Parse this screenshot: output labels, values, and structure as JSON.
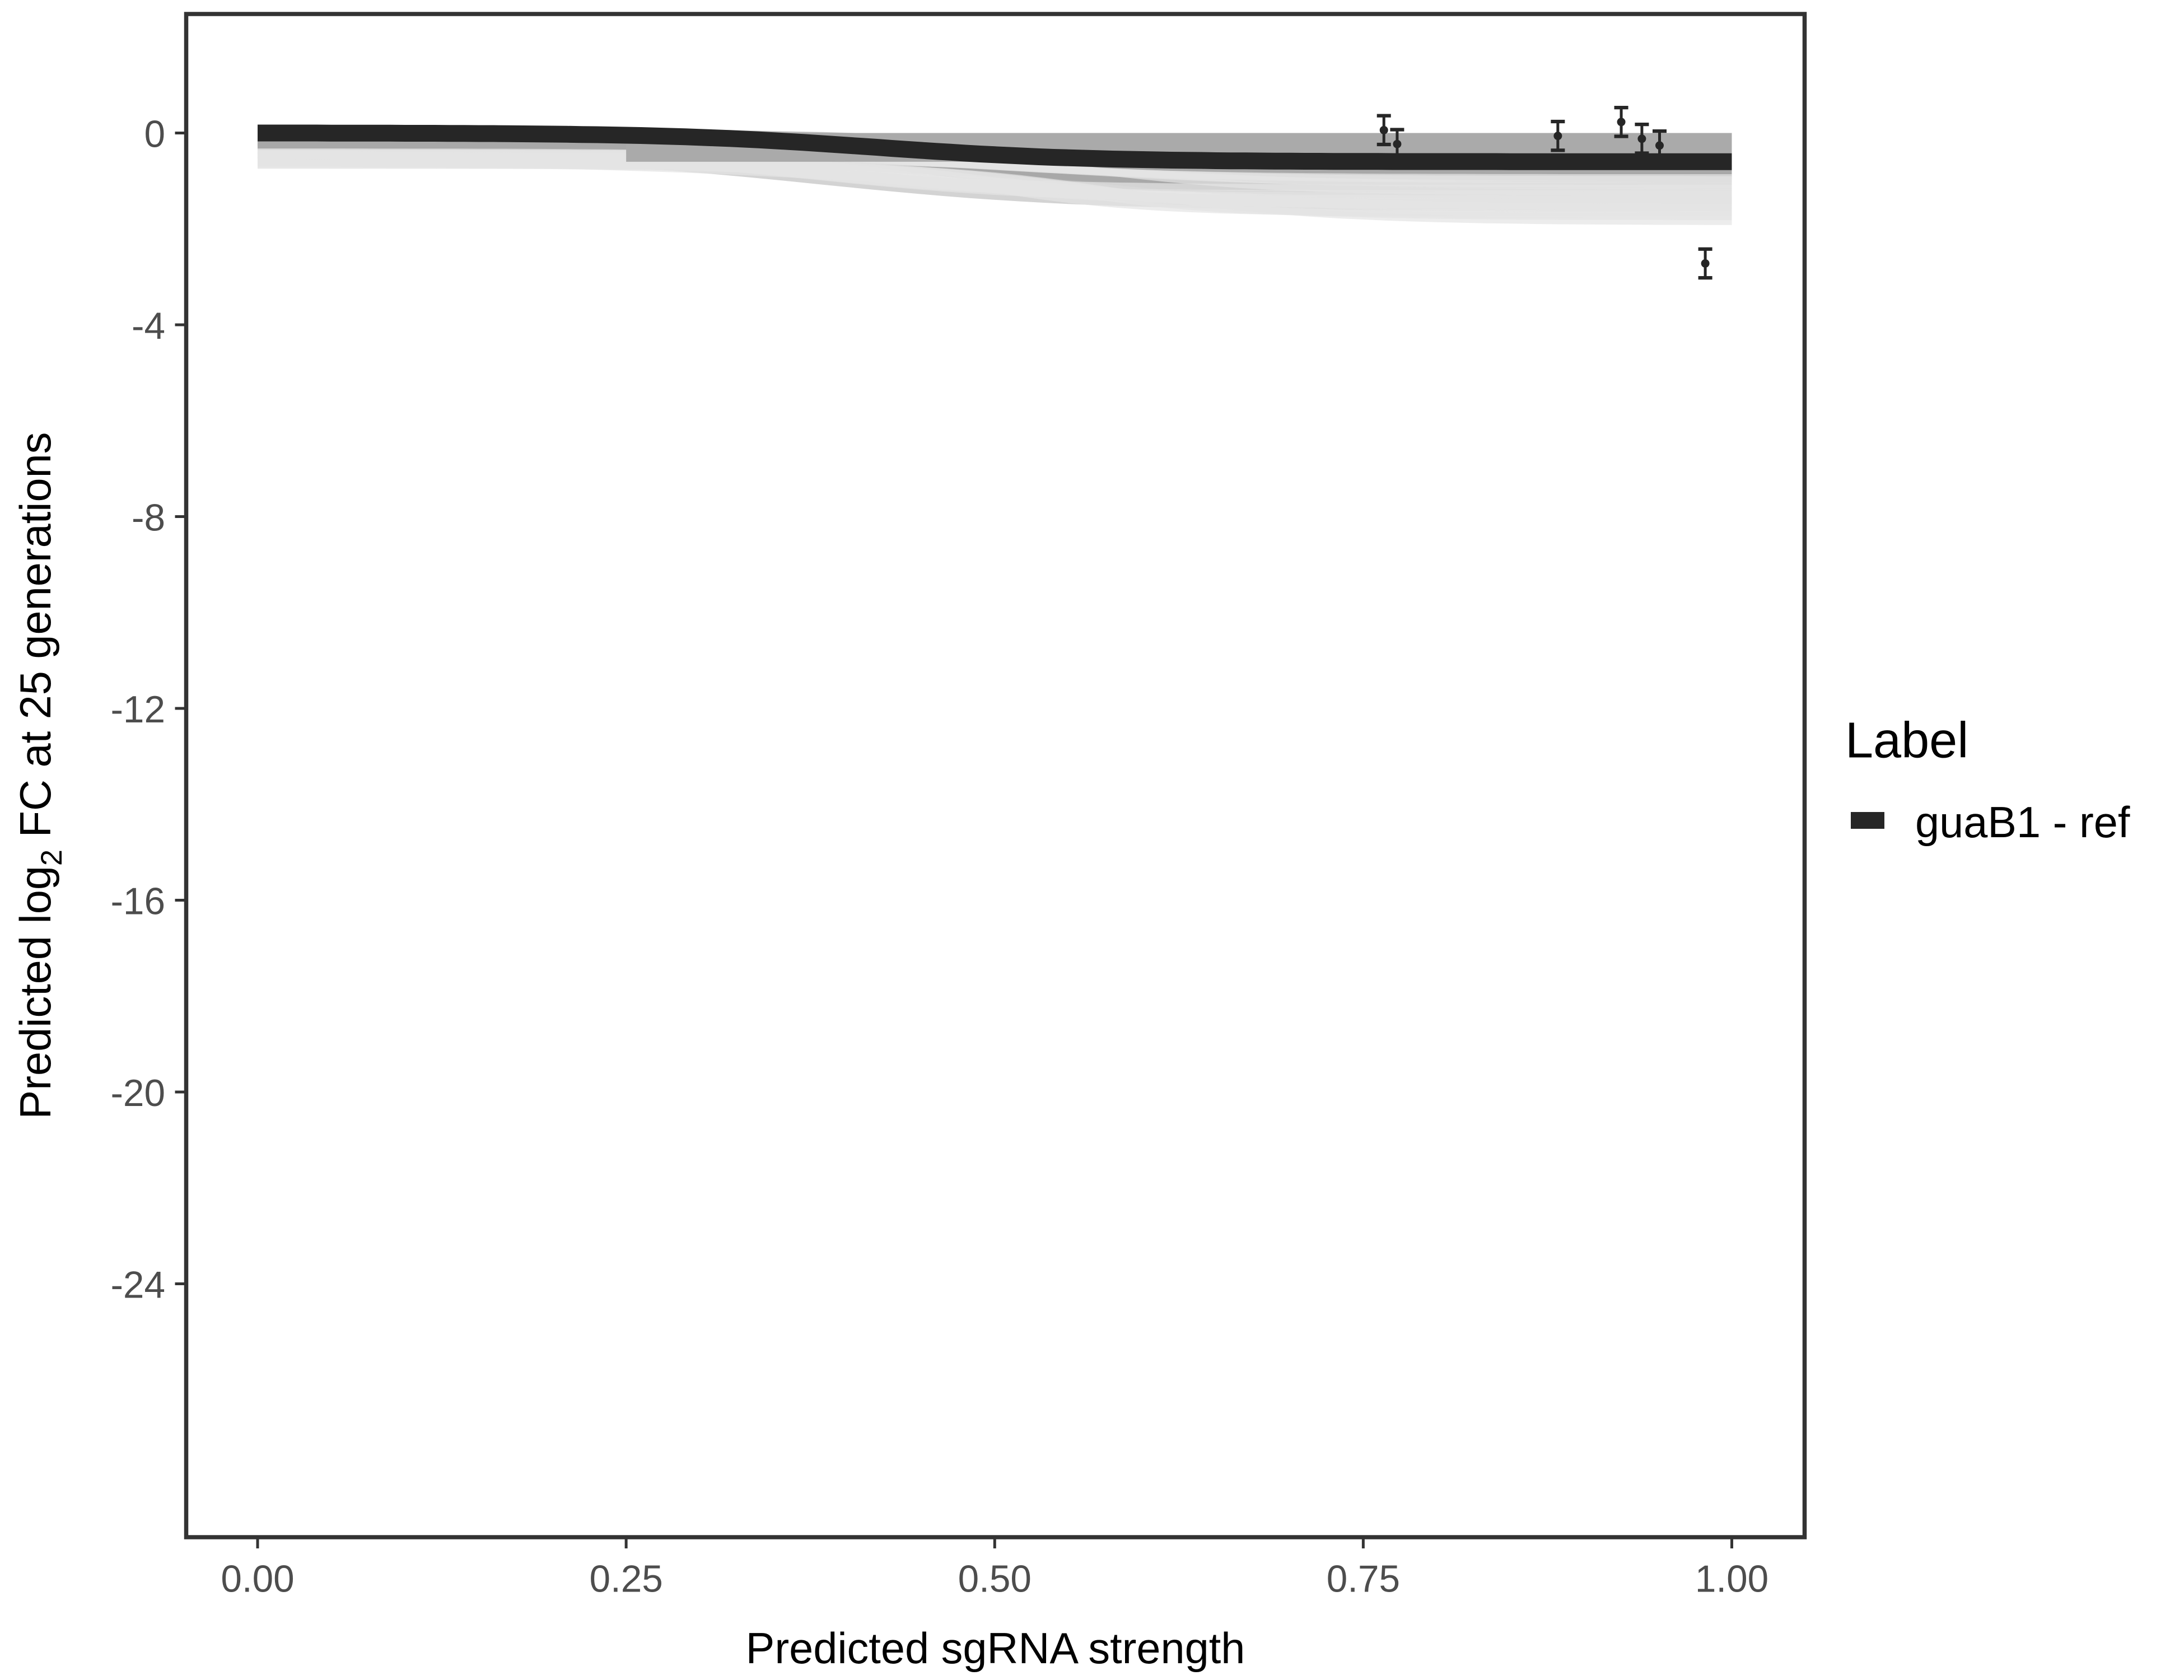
{
  "chart_data": {
    "type": "line",
    "title": "",
    "xlabel": "Predicted sgRNA strength",
    "ylabel_parts": {
      "pre": "Predicted  log",
      "sub": "2",
      "post": " FC at 25 generations"
    },
    "xlim": [
      -0.05,
      1.05
    ],
    "ylim": [
      -29.3,
      2.5
    ],
    "x_ticks": [
      0,
      0.25,
      0.5,
      0.75,
      1
    ],
    "x_tick_labels": [
      "0.00",
      "0.25",
      "0.50",
      "0.75",
      "1.00"
    ],
    "y_ticks": [
      0,
      -4,
      -8,
      -12,
      -16,
      -20,
      -24
    ],
    "y_tick_labels": [
      "0",
      "-4",
      "-8",
      "-12",
      "-16",
      "-20",
      "-24"
    ],
    "grid": false,
    "legend": {
      "title": "Label",
      "placement": "right",
      "entries": [
        {
          "label": "guaB1 - ref",
          "color": "#262626"
        }
      ]
    },
    "series": [
      {
        "name": "guaB1 - ref",
        "kind": "fitted-curve",
        "color": "#262626",
        "x": [
          0,
          0.1,
          0.2,
          0.3,
          0.4,
          0.5,
          0.6,
          0.7,
          0.8,
          0.9,
          1.0
        ],
        "y": [
          0,
          -0.01,
          -0.04,
          -0.14,
          -0.33,
          -0.5,
          -0.57,
          -0.59,
          -0.6,
          -0.6,
          -0.6
        ]
      },
      {
        "kind": "posterior-draws",
        "color": "#aaaaaa",
        "band_upper": 0,
        "band_lower_at_x0": -1.3,
        "band_lower_at_x1": -2.1
      },
      {
        "kind": "observed-points-with-error",
        "color": "#262626",
        "x": [
          0.764,
          0.773,
          0.882,
          0.925,
          0.939,
          0.951,
          0.982
        ],
        "y": [
          0.06,
          -0.23,
          -0.06,
          0.23,
          -0.12,
          -0.26,
          -2.72
        ],
        "err": [
          0.3,
          0.3,
          0.3,
          0.3,
          0.3,
          0.3,
          0.3
        ]
      }
    ]
  }
}
